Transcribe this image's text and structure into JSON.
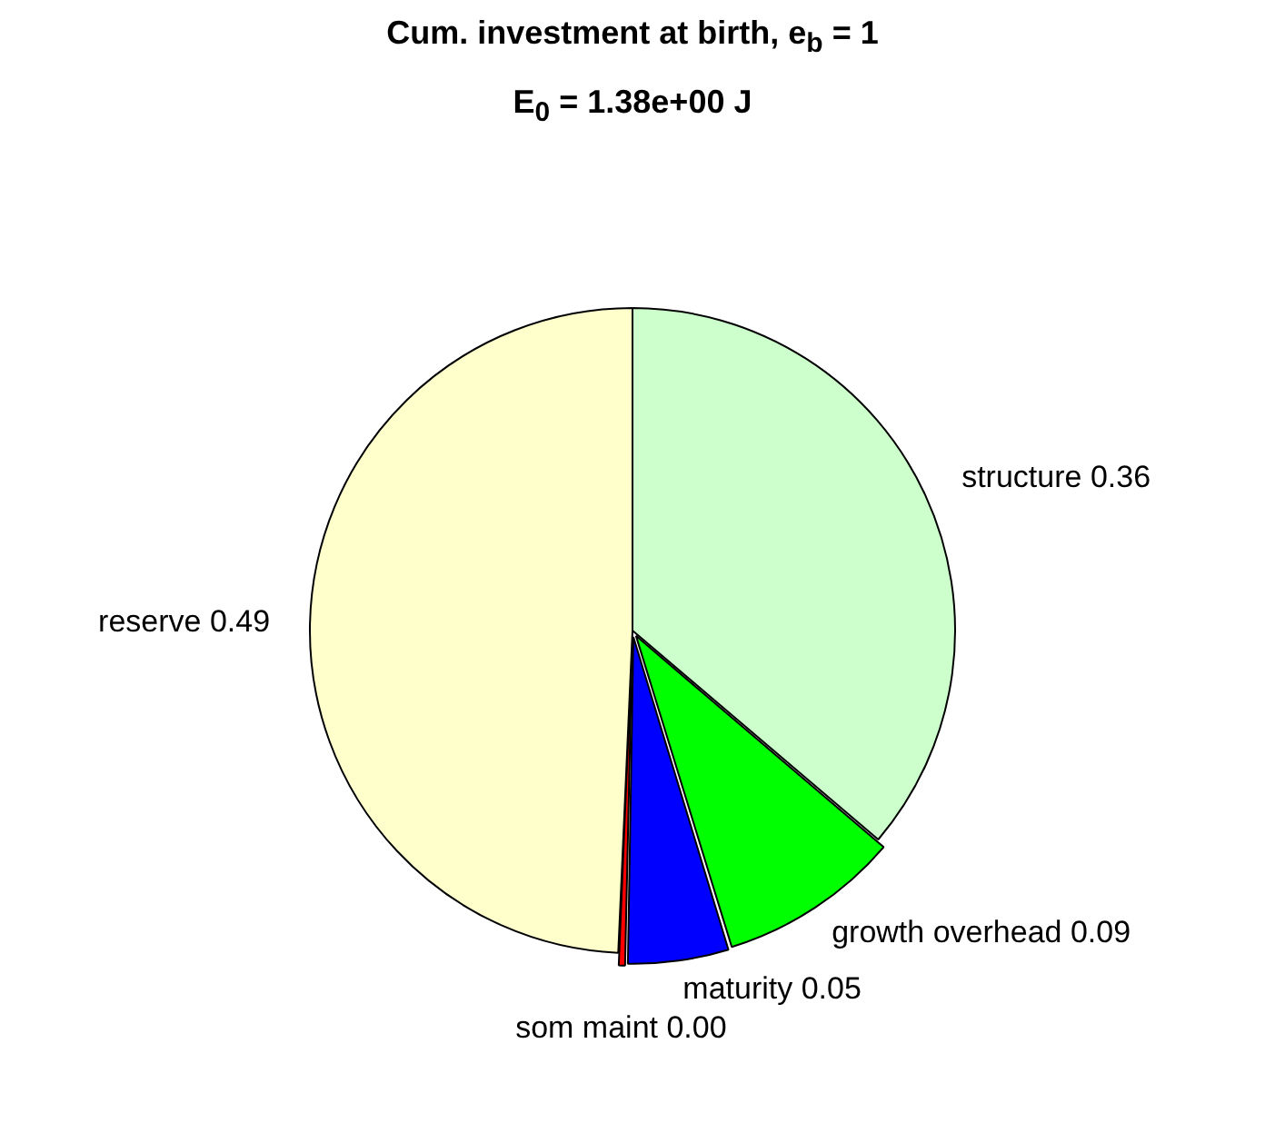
{
  "chart_data": {
    "type": "pie",
    "title": "Cum. investment at birth, e$_{b}$ = 1",
    "subtitle": "E$_{0}$ = 1.38e+00 J",
    "categories": [
      "structure",
      "growth overhead",
      "maturity",
      "som maint",
      "reserve"
    ],
    "values": [
      0.36,
      0.09,
      0.05,
      0.004,
      0.49
    ],
    "value_labels": [
      "0.36",
      "0.09",
      "0.05",
      "0.00",
      "0.49"
    ],
    "colors": [
      "#ccffcc",
      "#00ff00",
      "#0000ff",
      "#ff0000",
      "#ffffcc"
    ],
    "legend": false
  }
}
